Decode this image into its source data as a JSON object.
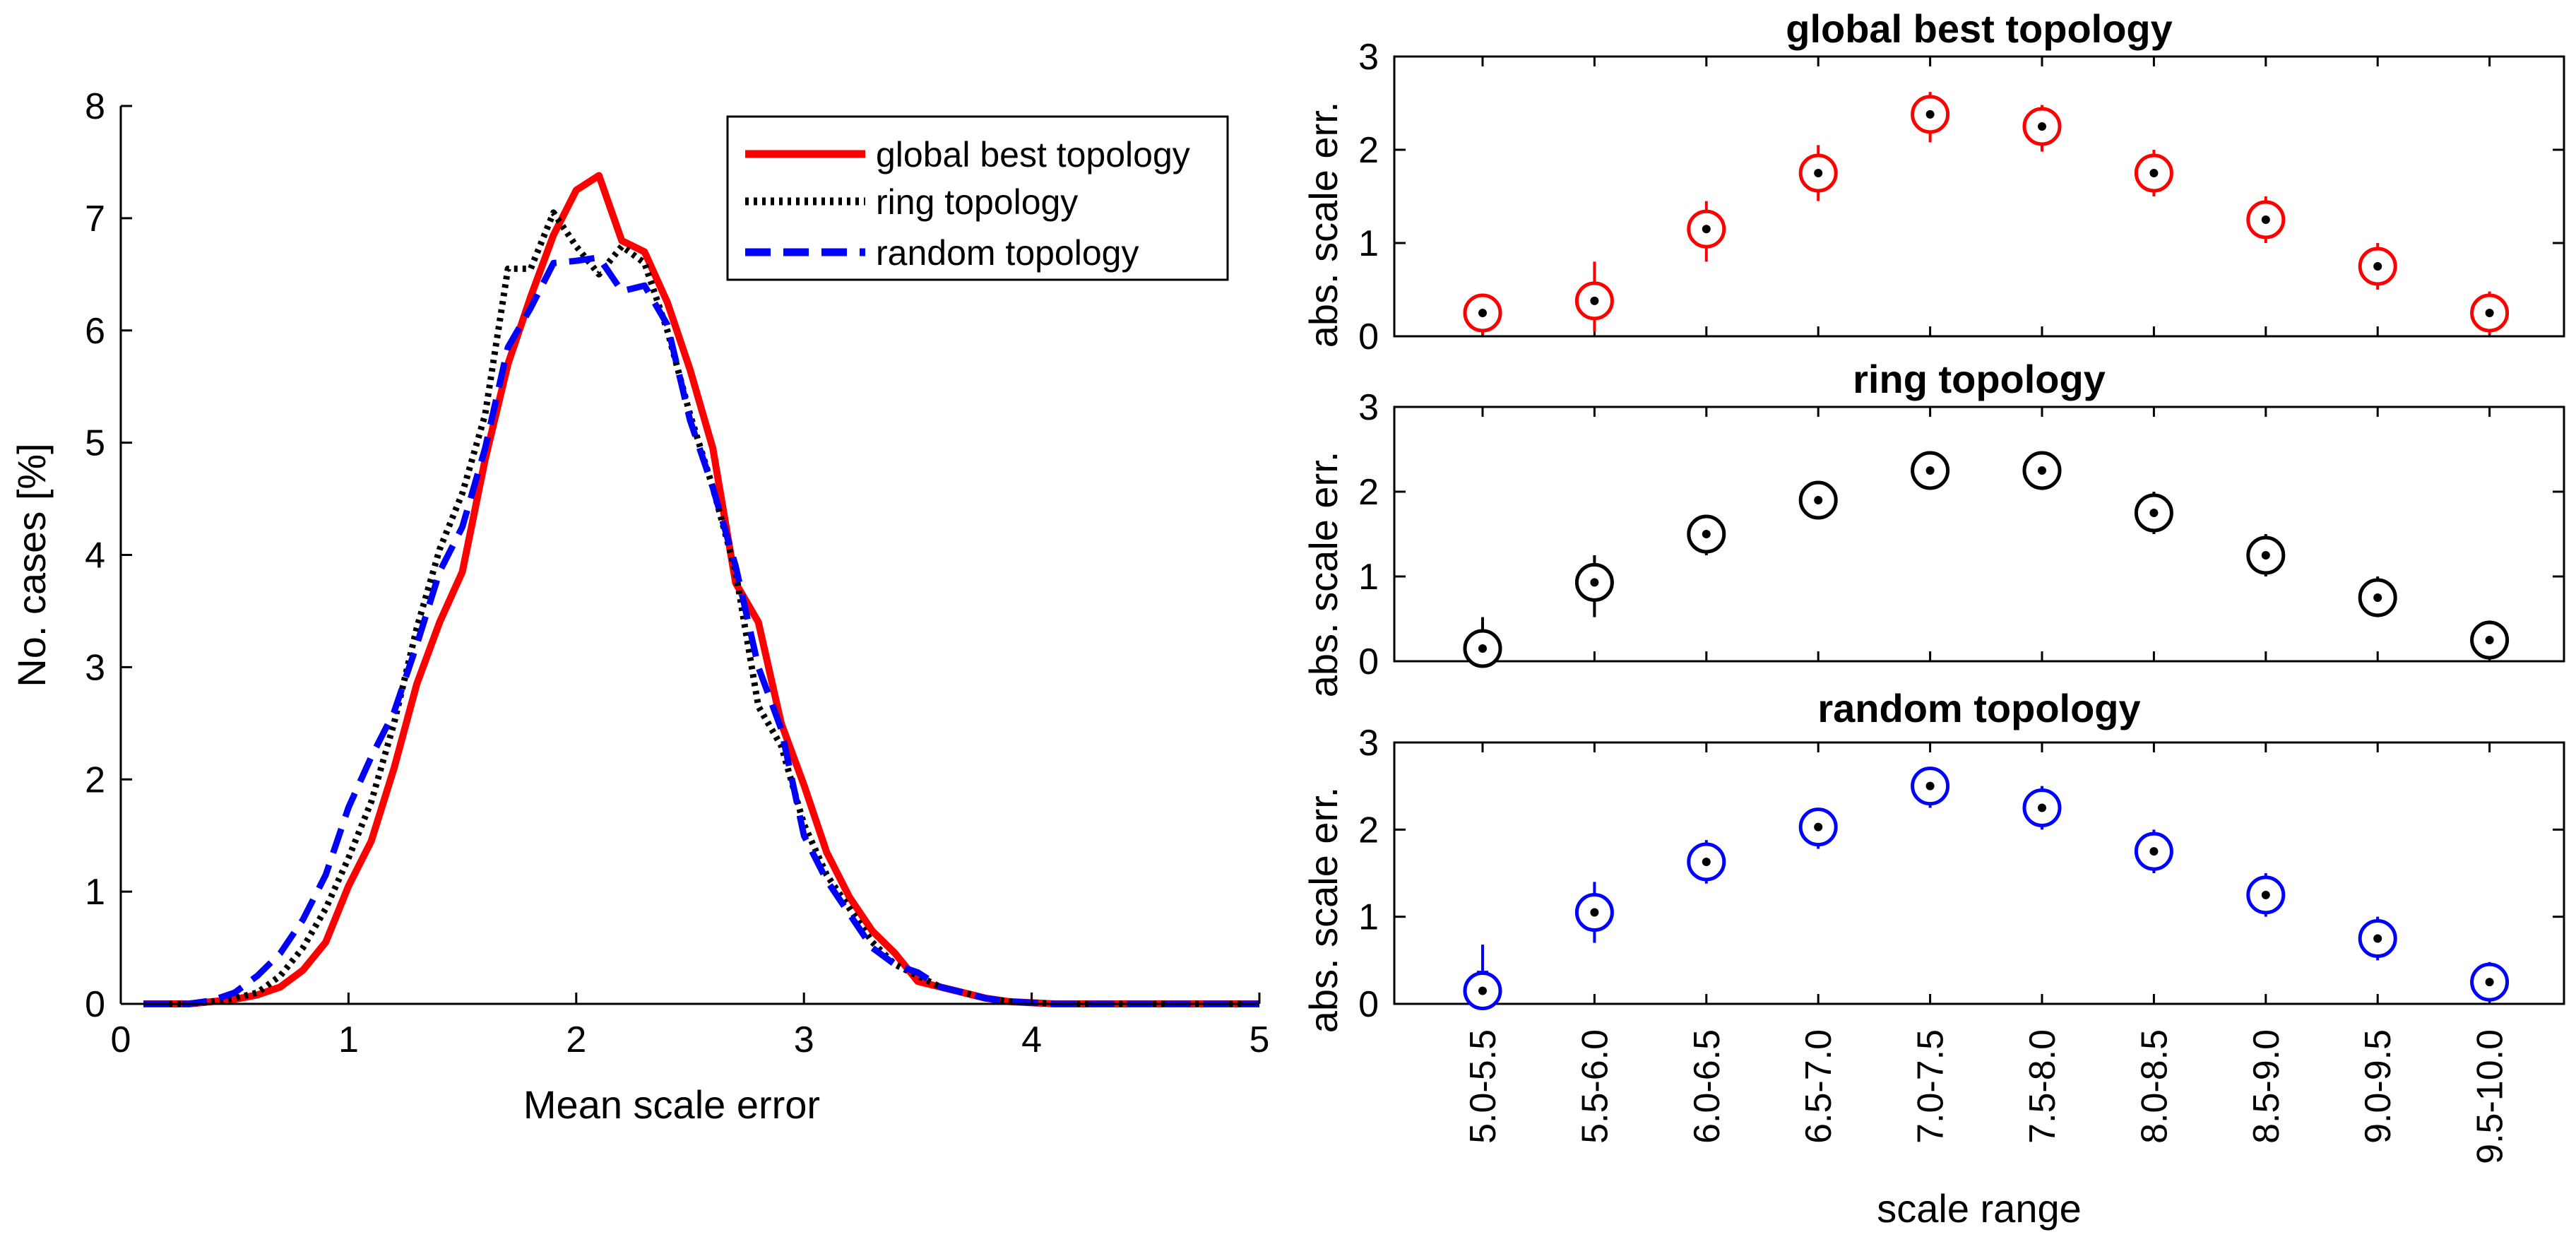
{
  "chart_data": [
    {
      "type": "line",
      "xlabel": "Mean scale error",
      "ylabel": "No. cases [%]",
      "xlim": [
        0,
        5
      ],
      "ylim": [
        0,
        8
      ],
      "xticks": [
        "0",
        "1",
        "2",
        "3",
        "4",
        "5"
      ],
      "yticks": [
        "0",
        "1",
        "2",
        "3",
        "4",
        "5",
        "6",
        "7",
        "8"
      ],
      "legend_position": "top-right",
      "series": [
        {
          "name": "global best topology",
          "color": "#ff0000",
          "style": "solid",
          "x": [
            0.1,
            0.2,
            0.3,
            0.4,
            0.5,
            0.6,
            0.7,
            0.8,
            0.9,
            1.0,
            1.1,
            1.2,
            1.3,
            1.4,
            1.5,
            1.6,
            1.7,
            1.8,
            1.9,
            2.0,
            2.1,
            2.2,
            2.3,
            2.4,
            2.5,
            2.6,
            2.7,
            2.8,
            2.9,
            3.0,
            3.1,
            3.2,
            3.3,
            3.4,
            3.5,
            3.6,
            3.7,
            3.8,
            3.9,
            4.0,
            4.1,
            4.2,
            4.3,
            4.4,
            4.5,
            4.6,
            4.7,
            4.8,
            4.9,
            5.0
          ],
          "y": [
            0,
            0,
            0,
            0.02,
            0.04,
            0.08,
            0.15,
            0.3,
            0.55,
            1.05,
            1.45,
            2.1,
            2.85,
            3.4,
            3.85,
            4.85,
            5.7,
            6.3,
            6.85,
            7.25,
            7.38,
            6.8,
            6.7,
            6.25,
            5.65,
            4.95,
            3.75,
            3.4,
            2.5,
            1.95,
            1.35,
            0.95,
            0.65,
            0.45,
            0.2,
            0.15,
            0.1,
            0.05,
            0.02,
            0.01,
            0,
            0,
            0,
            0,
            0,
            0,
            0,
            0,
            0,
            0
          ]
        },
        {
          "name": "ring topology",
          "color": "#000000",
          "style": "dotted",
          "x": [
            0.1,
            0.2,
            0.3,
            0.4,
            0.5,
            0.6,
            0.7,
            0.8,
            0.9,
            1.0,
            1.1,
            1.2,
            1.3,
            1.4,
            1.5,
            1.6,
            1.7,
            1.8,
            1.9,
            2.0,
            2.1,
            2.2,
            2.3,
            2.4,
            2.5,
            2.6,
            2.7,
            2.8,
            2.9,
            3.0,
            3.1,
            3.2,
            3.3,
            3.4,
            3.5,
            3.6,
            3.7,
            3.8,
            3.9,
            4.0,
            4.1,
            4.2,
            4.3,
            4.4,
            4.5,
            4.6,
            4.7,
            4.8,
            4.9,
            5.0
          ],
          "y": [
            0,
            0,
            0,
            0.02,
            0.05,
            0.1,
            0.25,
            0.5,
            0.85,
            1.3,
            1.8,
            2.5,
            3.35,
            4.05,
            4.55,
            5.25,
            6.55,
            6.55,
            7.05,
            6.75,
            6.5,
            6.75,
            6.6,
            6.0,
            5.25,
            4.6,
            3.85,
            2.65,
            2.3,
            1.6,
            1.15,
            0.85,
            0.55,
            0.35,
            0.25,
            0.15,
            0.1,
            0.05,
            0.02,
            0.01,
            0,
            0,
            0,
            0,
            0,
            0,
            0,
            0,
            0,
            0
          ]
        },
        {
          "name": "random topology",
          "color": "#0000ff",
          "style": "dashed",
          "x": [
            0.1,
            0.2,
            0.3,
            0.4,
            0.5,
            0.6,
            0.7,
            0.8,
            0.9,
            1.0,
            1.1,
            1.2,
            1.3,
            1.4,
            1.5,
            1.6,
            1.7,
            1.8,
            1.9,
            2.0,
            2.1,
            2.2,
            2.3,
            2.4,
            2.5,
            2.6,
            2.7,
            2.8,
            2.9,
            3.0,
            3.1,
            3.2,
            3.3,
            3.4,
            3.5,
            3.6,
            3.7,
            3.8,
            3.9,
            4.0,
            4.1,
            4.2,
            4.3,
            4.4,
            4.5,
            4.6,
            4.7,
            4.8,
            4.9,
            5.0
          ],
          "y": [
            0,
            0,
            0,
            0.03,
            0.1,
            0.25,
            0.45,
            0.75,
            1.15,
            1.75,
            2.2,
            2.6,
            3.2,
            3.85,
            4.25,
            4.95,
            5.85,
            6.2,
            6.6,
            6.62,
            6.65,
            6.35,
            6.4,
            6.05,
            5.2,
            4.6,
            3.9,
            3.0,
            2.45,
            1.5,
            1.1,
            0.8,
            0.5,
            0.35,
            0.28,
            0.15,
            0.1,
            0.05,
            0.02,
            0.01,
            0,
            0,
            0,
            0,
            0,
            0,
            0,
            0,
            0,
            0
          ]
        }
      ]
    },
    {
      "type": "scatter",
      "title": "global best topology",
      "color": "#ff0000",
      "ylabel": "abs. scale err.",
      "ylim": [
        0,
        3
      ],
      "yticks": [
        "0",
        "1",
        "2",
        "3"
      ],
      "categories": [
        "5.0-5.5",
        "5.5-6.0",
        "6.0-6.5",
        "6.5-7.0",
        "7.0-7.5",
        "7.5-8.0",
        "8.0-8.5",
        "8.5-9.0",
        "9.0-9.5",
        "9.5-10.0"
      ],
      "median": [
        0.25,
        0.38,
        1.15,
        1.75,
        2.38,
        2.25,
        1.75,
        1.25,
        0.75,
        0.25
      ],
      "q1": [
        0.22,
        0.2,
        1.0,
        1.62,
        2.28,
        2.18,
        1.65,
        1.18,
        0.68,
        0.22
      ],
      "q3": [
        0.28,
        0.58,
        1.25,
        1.88,
        2.45,
        2.33,
        1.85,
        1.33,
        0.85,
        0.28
      ],
      "whisker_low": [
        0.02,
        0.05,
        0.8,
        1.45,
        2.08,
        1.98,
        1.5,
        1.0,
        0.5,
        0.02
      ],
      "whisker_high": [
        0.45,
        0.8,
        1.45,
        2.05,
        2.62,
        2.48,
        2.0,
        1.5,
        1.0,
        0.48
      ]
    },
    {
      "type": "scatter",
      "title": "ring topology",
      "color": "#000000",
      "ylabel": "abs. scale err.",
      "ylim": [
        0,
        3
      ],
      "yticks": [
        "0",
        "1",
        "2",
        "3"
      ],
      "categories": [
        "5.0-5.5",
        "5.5-6.0",
        "6.0-6.5",
        "6.5-7.0",
        "7.0-7.5",
        "7.5-8.0",
        "8.0-8.5",
        "8.5-9.0",
        "9.0-9.5",
        "9.5-10.0"
      ],
      "median": [
        0.15,
        0.93,
        1.5,
        1.9,
        2.25,
        2.25,
        1.75,
        1.25,
        0.75,
        0.25
      ],
      "q1": [
        0.12,
        0.78,
        1.42,
        1.82,
        2.18,
        2.18,
        1.65,
        1.18,
        0.68,
        0.18
      ],
      "q3": [
        0.2,
        1.08,
        1.58,
        1.98,
        2.32,
        2.32,
        1.85,
        1.33,
        0.85,
        0.32
      ],
      "whisker_low": [
        0.0,
        0.52,
        1.25,
        1.7,
        2.05,
        2.02,
        1.5,
        1.0,
        0.52,
        0.02
      ],
      "whisker_high": [
        0.52,
        1.25,
        1.72,
        2.1,
        2.42,
        2.45,
        2.0,
        1.5,
        1.0,
        0.48
      ]
    },
    {
      "type": "scatter",
      "title": "random topology",
      "color": "#0000ff",
      "ylabel": "abs. scale err.",
      "ylim": [
        0,
        3
      ],
      "yticks": [
        "0",
        "1",
        "2",
        "3"
      ],
      "xlabel": "scale range",
      "categories": [
        "5.0-5.5",
        "5.5-6.0",
        "6.0-6.5",
        "6.5-7.0",
        "7.0-7.5",
        "7.5-8.0",
        "8.0-8.5",
        "8.5-9.0",
        "9.0-9.5",
        "9.5-10.0"
      ],
      "median": [
        0.15,
        1.05,
        1.63,
        2.03,
        2.5,
        2.25,
        1.75,
        1.25,
        0.75,
        0.25
      ],
      "q1": [
        0.1,
        0.9,
        1.55,
        1.95,
        2.42,
        2.15,
        1.65,
        1.18,
        0.68,
        0.18
      ],
      "q3": [
        0.38,
        1.22,
        1.72,
        2.12,
        2.58,
        2.35,
        1.85,
        1.33,
        0.85,
        0.32
      ],
      "whisker_low": [
        0.0,
        0.7,
        1.38,
        1.78,
        2.25,
        2.0,
        1.5,
        1.0,
        0.5,
        0.02
      ],
      "whisker_high": [
        0.68,
        1.4,
        1.88,
        2.25,
        2.72,
        2.5,
        2.0,
        1.5,
        1.0,
        0.48
      ]
    }
  ]
}
